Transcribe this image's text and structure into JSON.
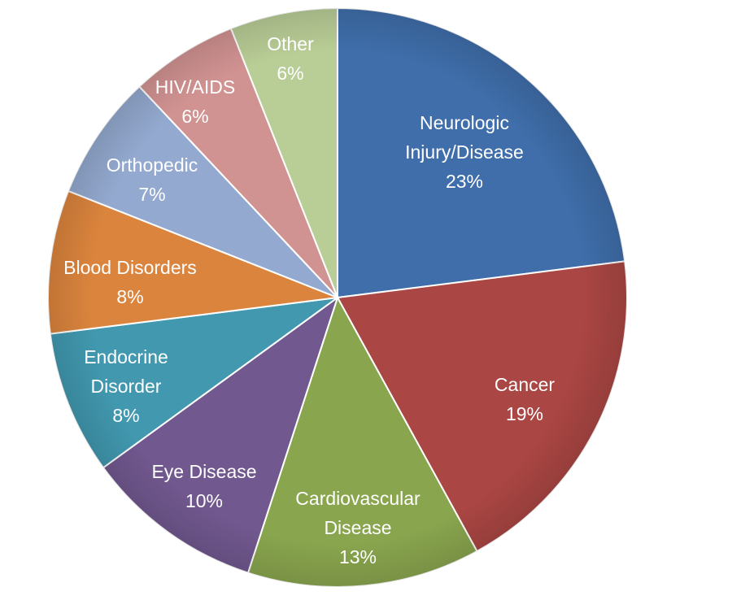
{
  "chart_data": {
    "type": "pie",
    "title": "",
    "slices": [
      {
        "lines": [
          "Neurologic",
          "Injury/Disease",
          "23%"
        ],
        "value": 23,
        "color": "#3F6EAA"
      },
      {
        "lines": [
          "Cancer",
          "19%"
        ],
        "value": 19,
        "color": "#AA4643"
      },
      {
        "lines": [
          "Cardiovascular",
          "Disease",
          "13%"
        ],
        "value": 13,
        "color": "#89A54E"
      },
      {
        "lines": [
          "Eye Disease",
          "10%"
        ],
        "value": 10,
        "color": "#71588F"
      },
      {
        "lines": [
          "Endocrine",
          "Disorder",
          "8%"
        ],
        "value": 8,
        "color": "#4198AF"
      },
      {
        "lines": [
          "Blood Disorders",
          "8%"
        ],
        "value": 8,
        "color": "#DB843D"
      },
      {
        "lines": [
          "Orthopedic",
          "7%"
        ],
        "value": 7,
        "color": "#93A9CF"
      },
      {
        "lines": [
          "HIV/AIDS",
          "6%"
        ],
        "value": 6,
        "color": "#D19392"
      },
      {
        "lines": [
          "Other",
          "6%"
        ],
        "value": 6,
        "color": "#B9CD96"
      }
    ]
  }
}
